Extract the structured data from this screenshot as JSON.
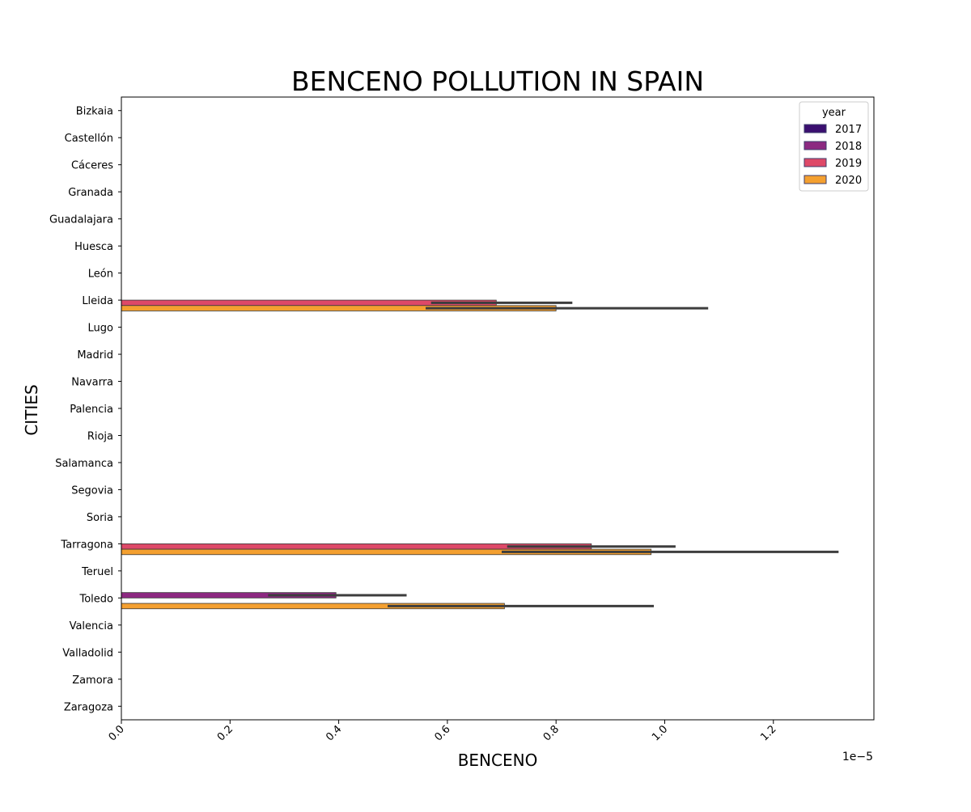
{
  "chart_data": {
    "type": "bar",
    "orientation": "horizontal",
    "title": "BENCENO POLLUTION IN SPAIN",
    "xlabel": "BENCENO",
    "ylabel": "CITIES",
    "x_offset_label": "1e−5",
    "x_scale_factor": 1e-05,
    "xlim": [
      0,
      1.385
    ],
    "x_ticks": [
      "0.0",
      "0.2",
      "0.4",
      "0.6",
      "0.8",
      "1.0",
      "1.2"
    ],
    "categories": [
      "Bizkaia",
      "Castellón",
      "Cáceres",
      "Granada",
      "Guadalajara",
      "Huesca",
      "León",
      "Lleida",
      "Lugo",
      "Madrid",
      "Navarra",
      "Palencia",
      "Rioja",
      "Salamanca",
      "Segovia",
      "Soria",
      "Tarragona",
      "Teruel",
      "Toledo",
      "Valencia",
      "Valladolid",
      "Zamora",
      "Zaragoza"
    ],
    "legend_title": "year",
    "legend_position": "top-right",
    "grid": false,
    "series": [
      {
        "name": "2017",
        "color": "#3b0f70",
        "values": [
          null,
          null,
          null,
          null,
          null,
          null,
          null,
          null,
          null,
          null,
          null,
          null,
          null,
          null,
          null,
          null,
          null,
          null,
          null,
          null,
          null,
          null,
          null
        ],
        "ci": [
          null,
          null,
          null,
          null,
          null,
          null,
          null,
          null,
          null,
          null,
          null,
          null,
          null,
          null,
          null,
          null,
          null,
          null,
          null,
          null,
          null,
          null,
          null
        ]
      },
      {
        "name": "2018",
        "color": "#8c2981",
        "values": [
          null,
          null,
          null,
          null,
          null,
          null,
          null,
          null,
          null,
          null,
          null,
          null,
          null,
          null,
          null,
          null,
          null,
          null,
          0.395,
          null,
          null,
          null,
          null
        ],
        "ci": [
          null,
          null,
          null,
          null,
          null,
          null,
          null,
          null,
          null,
          null,
          null,
          null,
          null,
          null,
          null,
          null,
          null,
          null,
          [
            0.27,
            0.525
          ],
          null,
          null,
          null,
          null
        ]
      },
      {
        "name": "2019",
        "color": "#de4968",
        "values": [
          null,
          null,
          null,
          null,
          null,
          null,
          null,
          0.69,
          null,
          null,
          null,
          null,
          null,
          null,
          null,
          null,
          0.865,
          null,
          null,
          null,
          null,
          null,
          null
        ],
        "ci": [
          null,
          null,
          null,
          null,
          null,
          null,
          null,
          [
            0.57,
            0.83
          ],
          null,
          null,
          null,
          null,
          null,
          null,
          null,
          null,
          [
            0.71,
            1.02
          ],
          null,
          null,
          null,
          null,
          null,
          null
        ]
      },
      {
        "name": "2020",
        "color": "#f4a030",
        "values": [
          null,
          null,
          null,
          null,
          null,
          null,
          null,
          0.8,
          null,
          null,
          null,
          null,
          null,
          null,
          null,
          null,
          0.975,
          null,
          0.705,
          null,
          null,
          null,
          null
        ],
        "ci": [
          null,
          null,
          null,
          null,
          null,
          null,
          null,
          [
            0.56,
            1.08
          ],
          null,
          null,
          null,
          null,
          null,
          null,
          null,
          null,
          [
            0.7,
            1.32
          ],
          null,
          [
            0.49,
            0.98
          ],
          null,
          null,
          null,
          null
        ]
      }
    ]
  }
}
